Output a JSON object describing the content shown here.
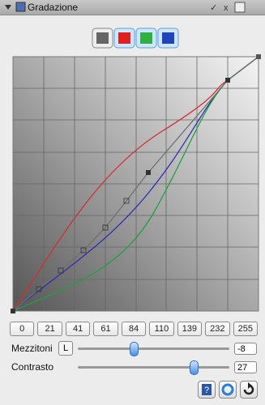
{
  "header": {
    "title": "Gradazione"
  },
  "points": [
    "0",
    "21",
    "41",
    "61",
    "84",
    "110",
    "139",
    "232",
    "255"
  ],
  "sliders": [
    {
      "label": "Mezzitoni",
      "channel": "L",
      "value": "-8"
    },
    {
      "label": "Contrasto",
      "value": "27"
    }
  ]
}
